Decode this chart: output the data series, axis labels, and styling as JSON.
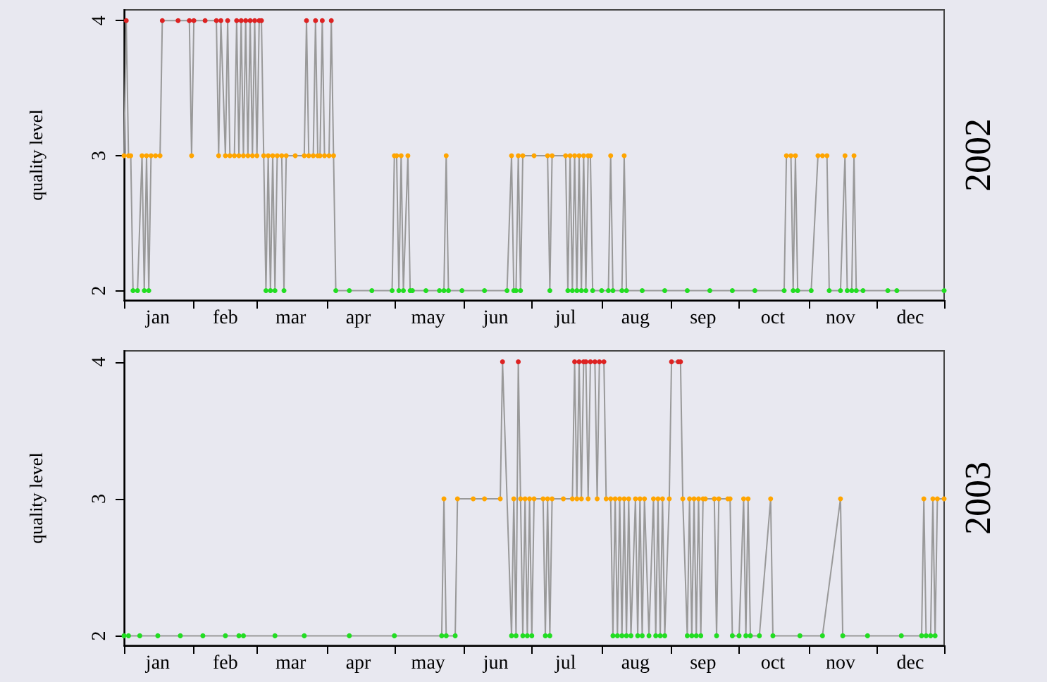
{
  "chart_data": [
    {
      "type": "line",
      "title": "2002",
      "ylabel": "quality level",
      "marker": "circle",
      "grid": false,
      "xlim": [
        "--01-01",
        "--12-31"
      ],
      "ylim": [
        1.93,
        4.08
      ],
      "yticks": [
        2,
        3,
        4
      ],
      "xticks": [
        {
          "value": "--01-01",
          "label": null
        },
        {
          "value": "--02-01",
          "label": null
        },
        {
          "value": "--03-01",
          "label": null
        },
        {
          "value": "--04-01",
          "label": null
        },
        {
          "value": "--05-01",
          "label": null
        },
        {
          "value": "--06-01",
          "label": null
        },
        {
          "value": "--07-01",
          "label": null
        },
        {
          "value": "--08-01",
          "label": null
        },
        {
          "value": "--09-01",
          "label": null
        },
        {
          "value": "--10-01",
          "label": null
        },
        {
          "value": "--11-01",
          "label": null
        },
        {
          "value": "--12-01",
          "label": null
        },
        {
          "value": "--12-31",
          "label": null
        },
        {
          "value": "--01-16",
          "label": "jan"
        },
        {
          "value": "--02-15",
          "label": "feb"
        },
        {
          "value": "--03-16",
          "label": "mar"
        },
        {
          "value": "--04-15",
          "label": "apr"
        },
        {
          "value": "--05-16",
          "label": "may"
        },
        {
          "value": "--06-15",
          "label": "jun"
        },
        {
          "value": "--07-16",
          "label": "jul"
        },
        {
          "value": "--08-16",
          "label": "aug"
        },
        {
          "value": "--09-15",
          "label": "sep"
        },
        {
          "value": "--10-16",
          "label": "oct"
        },
        {
          "value": "--11-15",
          "label": "nov"
        },
        {
          "value": "--12-16",
          "label": "dec"
        }
      ],
      "x": [
        "--01-01",
        "--01-02",
        "--01-03",
        "--01-04",
        "--01-05",
        "--01-07",
        "--01-09",
        "--01-10",
        "--01-11",
        "--01-12",
        "--01-13",
        "--01-15",
        "--01-17",
        "--01-18",
        "--01-25",
        "--01-30",
        "--01-31",
        "--02-01",
        "--02-06",
        "--02-11",
        "--02-12",
        "--02-13",
        "--02-15",
        "--02-16",
        "--02-17",
        "--02-19",
        "--02-20",
        "--02-21",
        "--02-22",
        "--02-23",
        "--02-24",
        "--02-25",
        "--02-26",
        "--02-27",
        "--02-28",
        "--03-01",
        "--03-02",
        "--03-03",
        "--03-04",
        "--03-05",
        "--03-06",
        "--03-07",
        "--03-08",
        "--03-09",
        "--03-10",
        "--03-12",
        "--03-13",
        "--03-14",
        "--03-18",
        "--03-22",
        "--03-23",
        "--03-24",
        "--03-26",
        "--03-27",
        "--03-28",
        "--03-29",
        "--03-30",
        "--03-31",
        "--04-02",
        "--04-03",
        "--04-04",
        "--04-05",
        "--04-11",
        "--04-21",
        "--04-30",
        "--05-01",
        "--05-02",
        "--05-03",
        "--05-04",
        "--05-05",
        "--05-07",
        "--05-08",
        "--05-09",
        "--05-15",
        "--05-21",
        "--05-23",
        "--05-24",
        "--05-25",
        "--05-31",
        "--06-10",
        "--06-20",
        "--06-22",
        "--06-23",
        "--06-24",
        "--06-25",
        "--06-26",
        "--06-27",
        "--07-02",
        "--07-08",
        "--07-09",
        "--07-10",
        "--07-16",
        "--07-17",
        "--07-18",
        "--07-19",
        "--07-20",
        "--07-21",
        "--07-22",
        "--07-23",
        "--07-24",
        "--07-25",
        "--07-26",
        "--07-27",
        "--07-28",
        "--08-01",
        "--08-04",
        "--08-05",
        "--08-06",
        "--08-10",
        "--08-11",
        "--08-12",
        "--08-19",
        "--08-29",
        "--09-08",
        "--09-18",
        "--09-28",
        "--10-08",
        "--10-21",
        "--10-22",
        "--10-24",
        "--10-25",
        "--10-26",
        "--10-27",
        "--11-02",
        "--11-05",
        "--11-07",
        "--11-09",
        "--11-10",
        "--11-15",
        "--11-17",
        "--11-18",
        "--11-20",
        "--11-21",
        "--11-22",
        "--11-25",
        "--12-06",
        "--12-10",
        "--12-31"
      ],
      "series": [
        {
          "color": "#999999",
          "values": [
            3,
            4,
            3,
            3,
            2,
            2,
            3,
            2,
            3,
            2,
            3,
            3,
            3,
            4,
            4,
            4,
            3,
            4,
            4,
            4,
            3,
            4,
            3,
            4,
            3,
            3,
            4,
            3,
            4,
            3,
            4,
            3,
            4,
            3,
            4,
            3,
            4,
            4,
            3,
            2,
            3,
            2,
            3,
            2,
            3,
            3,
            2,
            3,
            3,
            3,
            4,
            3,
            3,
            4,
            3,
            3,
            4,
            3,
            3,
            4,
            3,
            2,
            2,
            2,
            2,
            3,
            3,
            2,
            3,
            2,
            3,
            2,
            2,
            2,
            2,
            2,
            3,
            2,
            2,
            2,
            2,
            3,
            2,
            2,
            3,
            2,
            3,
            3,
            3,
            2,
            3,
            3,
            2,
            3,
            2,
            3,
            2,
            3,
            2,
            3,
            2,
            3,
            3,
            2,
            2,
            2,
            3,
            2,
            2,
            3,
            2,
            2,
            2,
            2,
            2,
            2,
            2,
            2,
            3,
            3,
            2,
            3,
            2,
            2,
            3,
            3,
            3,
            2,
            2,
            3,
            2,
            2,
            3,
            2,
            2,
            2,
            2,
            2
          ],
          "colors": [
            "#ffa500",
            "#dd2222",
            "#ffa500",
            "#ffa500",
            "#22dd22",
            "#22dd22",
            "#ffa500",
            "#22dd22",
            "#ffa500",
            "#22dd22",
            "#ffa500",
            "#ffa500",
            "#ffa500",
            "#dd2222",
            "#dd2222",
            "#dd2222",
            "#ffa500",
            "#dd2222",
            "#dd2222",
            "#dd2222",
            "#ffa500",
            "#dd2222",
            "#ffa500",
            "#dd2222",
            "#ffa500",
            "#ffa500",
            "#dd2222",
            "#ffa500",
            "#dd2222",
            "#ffa500",
            "#dd2222",
            "#ffa500",
            "#dd2222",
            "#ffa500",
            "#dd2222",
            "#ffa500",
            "#dd2222",
            "#dd2222",
            "#ffa500",
            "#22dd22",
            "#ffa500",
            "#22dd22",
            "#ffa500",
            "#22dd22",
            "#ffa500",
            "#ffa500",
            "#22dd22",
            "#ffa500",
            "#ffa500",
            "#ffa500",
            "#dd2222",
            "#ffa500",
            "#ffa500",
            "#dd2222",
            "#ffa500",
            "#ffa500",
            "#dd2222",
            "#ffa500",
            "#ffa500",
            "#dd2222",
            "#ffa500",
            "#22dd22",
            "#22dd22",
            "#22dd22",
            "#22dd22",
            "#ffa500",
            "#ffa500",
            "#22dd22",
            "#ffa500",
            "#22dd22",
            "#ffa500",
            "#22dd22",
            "#22dd22",
            "#22dd22",
            "#22dd22",
            "#22dd22",
            "#ffa500",
            "#22dd22",
            "#22dd22",
            "#22dd22",
            "#22dd22",
            "#ffa500",
            "#22dd22",
            "#22dd22",
            "#ffa500",
            "#22dd22",
            "#ffa500",
            "#ffa500",
            "#ffa500",
            "#22dd22",
            "#ffa500",
            "#ffa500",
            "#22dd22",
            "#ffa500",
            "#22dd22",
            "#ffa500",
            "#22dd22",
            "#ffa500",
            "#22dd22",
            "#ffa500",
            "#22dd22",
            "#ffa500",
            "#ffa500",
            "#22dd22",
            "#22dd22",
            "#22dd22",
            "#ffa500",
            "#22dd22",
            "#22dd22",
            "#ffa500",
            "#22dd22",
            "#22dd22",
            "#22dd22",
            "#22dd22",
            "#22dd22",
            "#22dd22",
            "#22dd22",
            "#22dd22",
            "#ffa500",
            "#ffa500",
            "#22dd22",
            "#ffa500",
            "#22dd22",
            "#22dd22",
            "#ffa500",
            "#ffa500",
            "#ffa500",
            "#22dd22",
            "#22dd22",
            "#ffa500",
            "#22dd22",
            "#22dd22",
            "#ffa500",
            "#22dd22",
            "#22dd22",
            "#22dd22",
            "#22dd22",
            "#22dd22"
          ]
        }
      ]
    },
    {
      "type": "line",
      "title": "2003",
      "ylabel": "quality level",
      "marker": "circle",
      "grid": false,
      "xlim": [
        "--01-01",
        "--12-31"
      ],
      "ylim": [
        1.93,
        4.08
      ],
      "yticks": [
        2,
        3,
        4
      ],
      "xticks": [
        {
          "value": "--01-01",
          "label": null
        },
        {
          "value": "--02-01",
          "label": null
        },
        {
          "value": "--03-01",
          "label": null
        },
        {
          "value": "--04-01",
          "label": null
        },
        {
          "value": "--05-01",
          "label": null
        },
        {
          "value": "--06-01",
          "label": null
        },
        {
          "value": "--07-01",
          "label": null
        },
        {
          "value": "--08-01",
          "label": null
        },
        {
          "value": "--09-01",
          "label": null
        },
        {
          "value": "--10-01",
          "label": null
        },
        {
          "value": "--11-01",
          "label": null
        },
        {
          "value": "--12-01",
          "label": null
        },
        {
          "value": "--12-31",
          "label": null
        },
        {
          "value": "--01-16",
          "label": "jan"
        },
        {
          "value": "--02-15",
          "label": "feb"
        },
        {
          "value": "--03-16",
          "label": "mar"
        },
        {
          "value": "--04-15",
          "label": "apr"
        },
        {
          "value": "--05-16",
          "label": "may"
        },
        {
          "value": "--06-15",
          "label": "jun"
        },
        {
          "value": "--07-16",
          "label": "jul"
        },
        {
          "value": "--08-16",
          "label": "aug"
        },
        {
          "value": "--09-15",
          "label": "sep"
        },
        {
          "value": "--10-16",
          "label": "oct"
        },
        {
          "value": "--11-15",
          "label": "nov"
        },
        {
          "value": "--12-16",
          "label": "dec"
        }
      ],
      "x": [
        "--01-01",
        "--01-03",
        "--01-08",
        "--01-16",
        "--01-26",
        "--02-05",
        "--02-15",
        "--02-21",
        "--02-23",
        "--03-09",
        "--03-22",
        "--04-11",
        "--05-01",
        "--05-22",
        "--05-23",
        "--05-24",
        "--05-28",
        "--05-29",
        "--06-05",
        "--06-10",
        "--06-17",
        "--06-18",
        "--06-22",
        "--06-23",
        "--06-24",
        "--06-25",
        "--06-26",
        "--06-27",
        "--06-28",
        "--06-29",
        "--06-30",
        "--07-01",
        "--07-02",
        "--07-06",
        "--07-07",
        "--07-08",
        "--07-09",
        "--07-10",
        "--07-15",
        "--07-19",
        "--07-20",
        "--07-21",
        "--07-22",
        "--07-23",
        "--07-24",
        "--07-25",
        "--07-26",
        "--07-27",
        "--07-29",
        "--07-30",
        "--07-31",
        "--08-02",
        "--08-03",
        "--08-05",
        "--08-06",
        "--08-07",
        "--08-08",
        "--08-09",
        "--08-10",
        "--08-11",
        "--08-12",
        "--08-13",
        "--08-14",
        "--08-16",
        "--08-17",
        "--08-18",
        "--08-19",
        "--08-20",
        "--08-22",
        "--08-24",
        "--08-25",
        "--08-26",
        "--08-27",
        "--08-28",
        "--08-29",
        "--08-31",
        "--09-01",
        "--09-04",
        "--09-05",
        "--09-06",
        "--09-08",
        "--09-09",
        "--09-10",
        "--09-11",
        "--09-12",
        "--09-13",
        "--09-14",
        "--09-15",
        "--09-16",
        "--09-20",
        "--09-21",
        "--09-22",
        "--09-26",
        "--09-27",
        "--09-28",
        "--10-01",
        "--10-03",
        "--10-04",
        "--10-05",
        "--10-06",
        "--10-10",
        "--10-15",
        "--10-16",
        "--10-28",
        "--11-07",
        "--11-15",
        "--11-16",
        "--11-27",
        "--12-12",
        "--12-21",
        "--12-22",
        "--12-23",
        "--12-25",
        "--12-26",
        "--12-27",
        "--12-28",
        "--12-31"
      ],
      "series": [
        {
          "color": "#999999",
          "values": [
            2,
            2,
            2,
            2,
            2,
            2,
            2,
            2,
            2,
            2,
            2,
            2,
            2,
            2,
            3,
            2,
            2,
            3,
            3,
            3,
            3,
            4,
            2,
            3,
            2,
            4,
            3,
            2,
            3,
            2,
            3,
            2,
            3,
            3,
            2,
            3,
            2,
            3,
            3,
            3,
            4,
            3,
            4,
            3,
            4,
            4,
            3,
            4,
            4,
            3,
            4,
            4,
            3,
            3,
            2,
            3,
            2,
            3,
            2,
            3,
            2,
            3,
            2,
            3,
            2,
            3,
            2,
            3,
            2,
            3,
            2,
            3,
            2,
            3,
            2,
            3,
            4,
            4,
            4,
            3,
            2,
            3,
            2,
            3,
            2,
            3,
            2,
            3,
            3,
            3,
            2,
            3,
            3,
            3,
            2,
            2,
            3,
            2,
            3,
            2,
            2,
            3,
            2,
            2,
            2,
            3,
            2,
            2,
            2,
            2,
            3,
            2,
            2,
            3,
            2,
            3,
            3
          ],
          "colors": [
            "#22dd22",
            "#22dd22",
            "#22dd22",
            "#22dd22",
            "#22dd22",
            "#22dd22",
            "#22dd22",
            "#22dd22",
            "#22dd22",
            "#22dd22",
            "#22dd22",
            "#22dd22",
            "#22dd22",
            "#22dd22",
            "#ffa500",
            "#22dd22",
            "#22dd22",
            "#ffa500",
            "#ffa500",
            "#ffa500",
            "#ffa500",
            "#dd2222",
            "#22dd22",
            "#ffa500",
            "#22dd22",
            "#dd2222",
            "#ffa500",
            "#22dd22",
            "#ffa500",
            "#22dd22",
            "#ffa500",
            "#22dd22",
            "#ffa500",
            "#ffa500",
            "#22dd22",
            "#ffa500",
            "#22dd22",
            "#ffa500",
            "#ffa500",
            "#ffa500",
            "#dd2222",
            "#ffa500",
            "#dd2222",
            "#ffa500",
            "#dd2222",
            "#dd2222",
            "#ffa500",
            "#dd2222",
            "#dd2222",
            "#ffa500",
            "#dd2222",
            "#dd2222",
            "#ffa500",
            "#ffa500",
            "#22dd22",
            "#ffa500",
            "#22dd22",
            "#ffa500",
            "#22dd22",
            "#ffa500",
            "#22dd22",
            "#ffa500",
            "#22dd22",
            "#ffa500",
            "#22dd22",
            "#ffa500",
            "#22dd22",
            "#ffa500",
            "#22dd22",
            "#ffa500",
            "#22dd22",
            "#ffa500",
            "#22dd22",
            "#ffa500",
            "#22dd22",
            "#ffa500",
            "#dd2222",
            "#dd2222",
            "#dd2222",
            "#ffa500",
            "#22dd22",
            "#ffa500",
            "#22dd22",
            "#ffa500",
            "#22dd22",
            "#ffa500",
            "#22dd22",
            "#ffa500",
            "#ffa500",
            "#ffa500",
            "#22dd22",
            "#ffa500",
            "#ffa500",
            "#ffa500",
            "#22dd22",
            "#22dd22",
            "#ffa500",
            "#22dd22",
            "#ffa500",
            "#22dd22",
            "#22dd22",
            "#ffa500",
            "#22dd22",
            "#22dd22",
            "#22dd22",
            "#ffa500",
            "#22dd22",
            "#22dd22",
            "#22dd22",
            "#22dd22",
            "#ffa500",
            "#22dd22",
            "#22dd22",
            "#ffa500",
            "#22dd22",
            "#ffa500",
            "#ffa500"
          ]
        }
      ]
    }
  ]
}
